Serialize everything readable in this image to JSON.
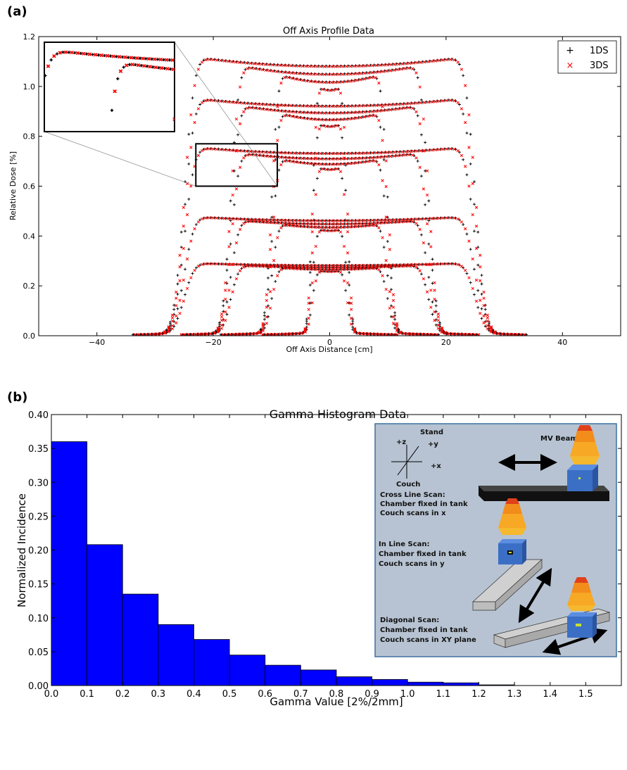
{
  "panel_labels": [
    "(a)",
    "(b)"
  ],
  "chart_data": [
    {
      "type": "scatter",
      "title": "Off Axis Profile Data",
      "xlabel": "Off Axis Distance [cm]",
      "ylabel": "Relative Dose [%]",
      "xlim": [
        -50,
        50
      ],
      "ylim": [
        0.0,
        1.2
      ],
      "xticks": [
        "−40",
        "−20",
        "0",
        "20",
        "40"
      ],
      "yticks": [
        "0.0",
        "0.2",
        "0.4",
        "0.6",
        "0.8",
        "1.0",
        "1.2"
      ],
      "legend_position": "top-right",
      "series": [
        {
          "name": "1DS",
          "marker": "+",
          "color": "#000000"
        },
        {
          "name": "3DS",
          "marker": "x",
          "color": "#ff0000"
        }
      ],
      "profiles": [
        {
          "peak": 1.07,
          "widths": [
            25,
            17,
            10,
            3
          ]
        },
        {
          "peak": 0.91,
          "widths": [
            25,
            17,
            10,
            3
          ]
        },
        {
          "peak": 0.72,
          "widths": [
            25,
            17,
            10,
            3
          ]
        },
        {
          "peak": 0.45,
          "widths": [
            25,
            17,
            10,
            3
          ]
        },
        {
          "peak": 0.27,
          "widths": [
            25,
            17,
            10,
            3
          ]
        }
      ],
      "zoom_inset": {
        "x_range": [
          -23,
          -9
        ],
        "y_range": [
          0.6,
          0.77
        ]
      }
    },
    {
      "type": "bar",
      "title": "Gamma Histogram Data",
      "xlabel": "Gamma Value [2%/2mm]",
      "ylabel": "Normalized Incidence",
      "xlim": [
        0.0,
        1.6
      ],
      "ylim": [
        0.0,
        0.4
      ],
      "bin_edges": [
        0.0,
        0.1,
        0.2,
        0.3,
        0.4,
        0.5,
        0.6,
        0.7,
        0.8,
        0.9,
        1.0,
        1.1,
        1.2,
        1.3
      ],
      "values": [
        0.36,
        0.208,
        0.135,
        0.09,
        0.068,
        0.045,
        0.03,
        0.023,
        0.013,
        0.009,
        0.005,
        0.004,
        0.001
      ],
      "xticks": [
        "0.0",
        "0.1",
        "0.2",
        "0.3",
        "0.4",
        "0.5",
        "0.6",
        "0.7",
        "0.8",
        "0.9",
        "1.0",
        "1.1",
        "1.2",
        "1.3",
        "1.4",
        "1.5"
      ],
      "yticks": [
        "0.00",
        "0.05",
        "0.10",
        "0.15",
        "0.20",
        "0.25",
        "0.30",
        "0.35",
        "0.40"
      ],
      "color": "#0000ff"
    }
  ],
  "diagram": {
    "axes_labels": {
      "plus_z": "+z",
      "plus_y": "+y",
      "plus_x": "+x",
      "stand": "Stand",
      "couch": "Couch"
    },
    "beam_label": "MV Beam",
    "cross_line": [
      "Cross Line Scan:",
      "Chamber fixed in tank",
      "Couch scans in x"
    ],
    "in_line": [
      "In Line Scan:",
      "Chamber fixed in tank",
      "Couch scans in y"
    ],
    "diagonal": [
      "Diagonal Scan:",
      "Chamber fixed in tank",
      "Couch scans in XY plane"
    ]
  }
}
